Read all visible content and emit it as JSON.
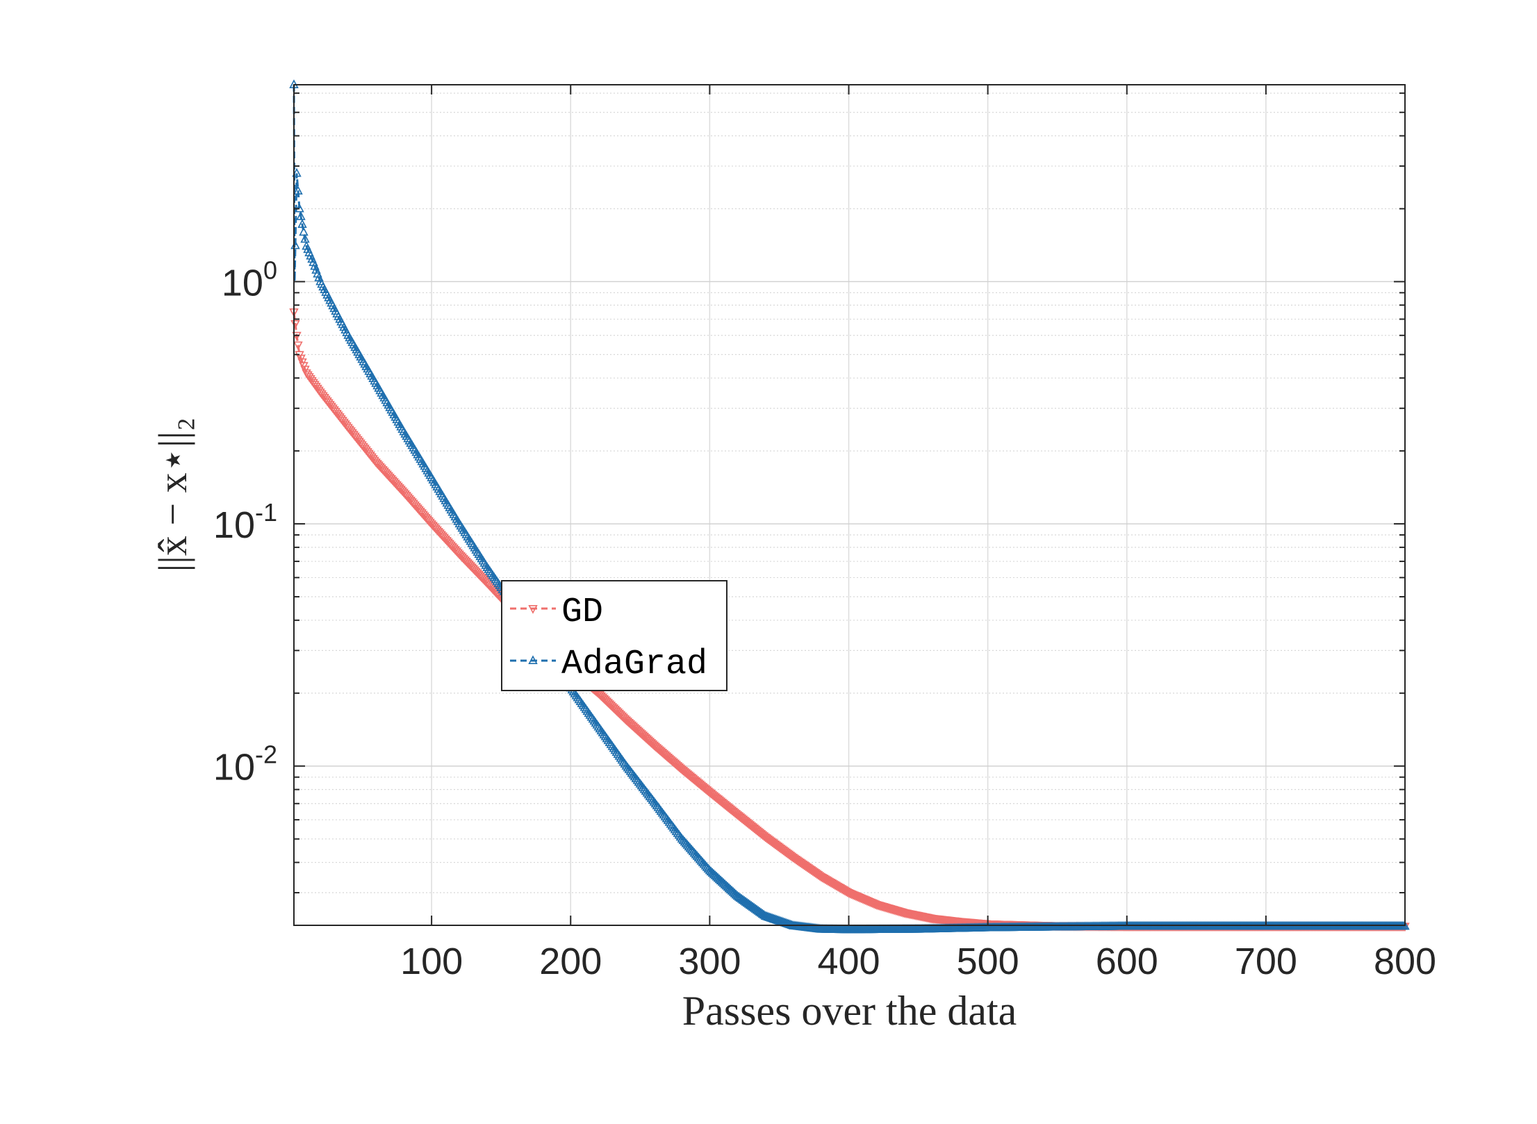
{
  "chart_data": {
    "type": "line",
    "title": "",
    "xlabel": "Passes over the data",
    "ylabel": "||x̂ − x⋆||₂",
    "xscale": "linear",
    "yscale": "log",
    "xlim": [
      1,
      800
    ],
    "ylim": [
      0.0022,
      6.5
    ],
    "grid": true,
    "legend_position": "center-left",
    "x_ticks": [
      100,
      200,
      300,
      400,
      500,
      600,
      700,
      800
    ],
    "x_tick_labels": [
      "100",
      "200",
      "300",
      "400",
      "500",
      "600",
      "700",
      "800"
    ],
    "y_ticks": [
      {
        "value": 1,
        "base": "10",
        "exp": "0"
      },
      {
        "value": 0.1,
        "base": "10",
        "exp": "-1"
      },
      {
        "value": 0.01,
        "base": "10",
        "exp": "-2"
      }
    ],
    "series": [
      {
        "name": "GD",
        "color": "#ef6f6c",
        "marker": "triangle-down",
        "points": [
          [
            1,
            0.75
          ],
          [
            3,
            0.6
          ],
          [
            5,
            0.5
          ],
          [
            10,
            0.42
          ],
          [
            20,
            0.35
          ],
          [
            40,
            0.25
          ],
          [
            60,
            0.18
          ],
          [
            80,
            0.135
          ],
          [
            100,
            0.1
          ],
          [
            120,
            0.075
          ],
          [
            140,
            0.057
          ],
          [
            160,
            0.043
          ],
          [
            180,
            0.033
          ],
          [
            200,
            0.025
          ],
          [
            220,
            0.02
          ],
          [
            240,
            0.0155
          ],
          [
            260,
            0.0122
          ],
          [
            280,
            0.0097
          ],
          [
            300,
            0.0078
          ],
          [
            320,
            0.0063
          ],
          [
            340,
            0.0051
          ],
          [
            360,
            0.0042
          ],
          [
            380,
            0.0035
          ],
          [
            400,
            0.003
          ],
          [
            420,
            0.00268
          ],
          [
            440,
            0.00248
          ],
          [
            460,
            0.00235
          ],
          [
            480,
            0.00228
          ],
          [
            500,
            0.00223
          ],
          [
            550,
            0.00219
          ],
          [
            600,
            0.00218
          ],
          [
            700,
            0.00218
          ],
          [
            800,
            0.00218
          ]
        ]
      },
      {
        "name": "AdaGrad",
        "color": "#1f6fae",
        "marker": "triangle-up",
        "points": [
          [
            1,
            6.5
          ],
          [
            1.5,
            1.0
          ],
          [
            3,
            2.8
          ],
          [
            5,
            2.0
          ],
          [
            8,
            1.6
          ],
          [
            10,
            1.4
          ],
          [
            15,
            1.2
          ],
          [
            20,
            1.0
          ],
          [
            40,
            0.6
          ],
          [
            60,
            0.38
          ],
          [
            80,
            0.24
          ],
          [
            100,
            0.155
          ],
          [
            120,
            0.1
          ],
          [
            140,
            0.066
          ],
          [
            160,
            0.045
          ],
          [
            180,
            0.031
          ],
          [
            200,
            0.021
          ],
          [
            220,
            0.0145
          ],
          [
            240,
            0.01
          ],
          [
            260,
            0.0071
          ],
          [
            280,
            0.005
          ],
          [
            300,
            0.0037
          ],
          [
            320,
            0.0029
          ],
          [
            340,
            0.0024
          ],
          [
            360,
            0.00219
          ],
          [
            380,
            0.00212
          ],
          [
            400,
            0.00211
          ],
          [
            450,
            0.00212
          ],
          [
            500,
            0.00215
          ],
          [
            600,
            0.00218
          ],
          [
            700,
            0.00218
          ],
          [
            800,
            0.00218
          ]
        ]
      }
    ]
  }
}
